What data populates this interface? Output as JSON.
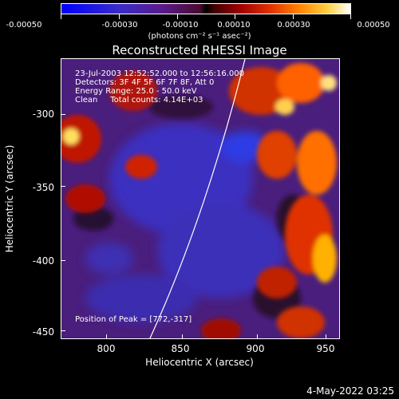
{
  "colorbar": {
    "ticks": [
      "-0.00050",
      "-0.00030",
      "-0.00010",
      "0.00010",
      "0.00030",
      "0.00050"
    ],
    "units": "(photons cm⁻² s⁻¹ asec⁻²)"
  },
  "title": "Reconstructed RHESSI Image",
  "info": {
    "time": "23-Jul-2003 12:52:52.000 to 12:56:16.000",
    "detectors": "Detectors: 3F 4F 5F 6F 7F 8F, Att 0",
    "energy": "Energy Range: 25.0 - 50.0 keV",
    "clean": "Clean     Total counts: 4.14E+03"
  },
  "peak": "Position of Peak = [772,-317]",
  "axes": {
    "xlabel": "Heliocentric X (arcsec)",
    "ylabel": "Heliocentric Y (arcsec)",
    "xticks": [
      "800",
      "850",
      "900",
      "950"
    ],
    "yticks": [
      "-300",
      "-350",
      "-400",
      "-450"
    ]
  },
  "footer_date": "4-May-2022 03:25"
}
